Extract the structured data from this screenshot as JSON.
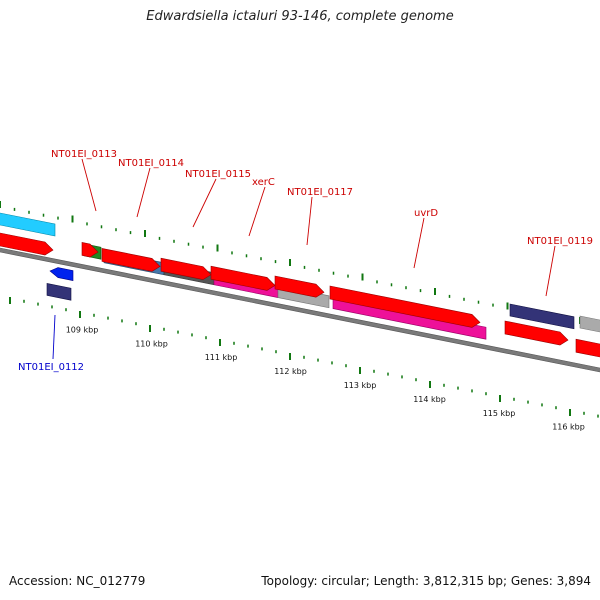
{
  "title": "Edwardsiella ictaluri 93-146, complete genome",
  "footer": {
    "accession": "Accession: NC_012779",
    "summary": "Topology: circular; Length: 3,812,315 bp; Genes: 3,894"
  },
  "colors": {
    "backbone": "#7a7a7a",
    "cds_red": "#ff0000",
    "tick_green": "#117711",
    "label_red": "#cc0000",
    "label_blue": "#0000cc"
  },
  "kbp_ticks": [
    "109 kbp",
    "110 kbp",
    "111 kbp",
    "112 kbp",
    "113 kbp",
    "114 kbp",
    "115 kbp",
    "116 kbp"
  ],
  "genes": [
    {
      "label": "",
      "color": "#22ccff"
    },
    {
      "label": "NT01EI_0112",
      "color": "#333377"
    },
    {
      "label": "NT01EI_0113",
      "color": "#228822"
    },
    {
      "label": "NT01EI_0114",
      "color": "#4477aa"
    },
    {
      "label": "NT01EI_0115",
      "color": "#555555"
    },
    {
      "label": "xerC",
      "color": "#ee1199"
    },
    {
      "label": "NT01EI_0117",
      "color": "#aaaaaa"
    },
    {
      "label": "uvrD",
      "color": "#ee1199"
    },
    {
      "label": "NT01EI_0119",
      "color": "#333377"
    },
    {
      "label": "",
      "color": "#aaaaaa"
    }
  ]
}
